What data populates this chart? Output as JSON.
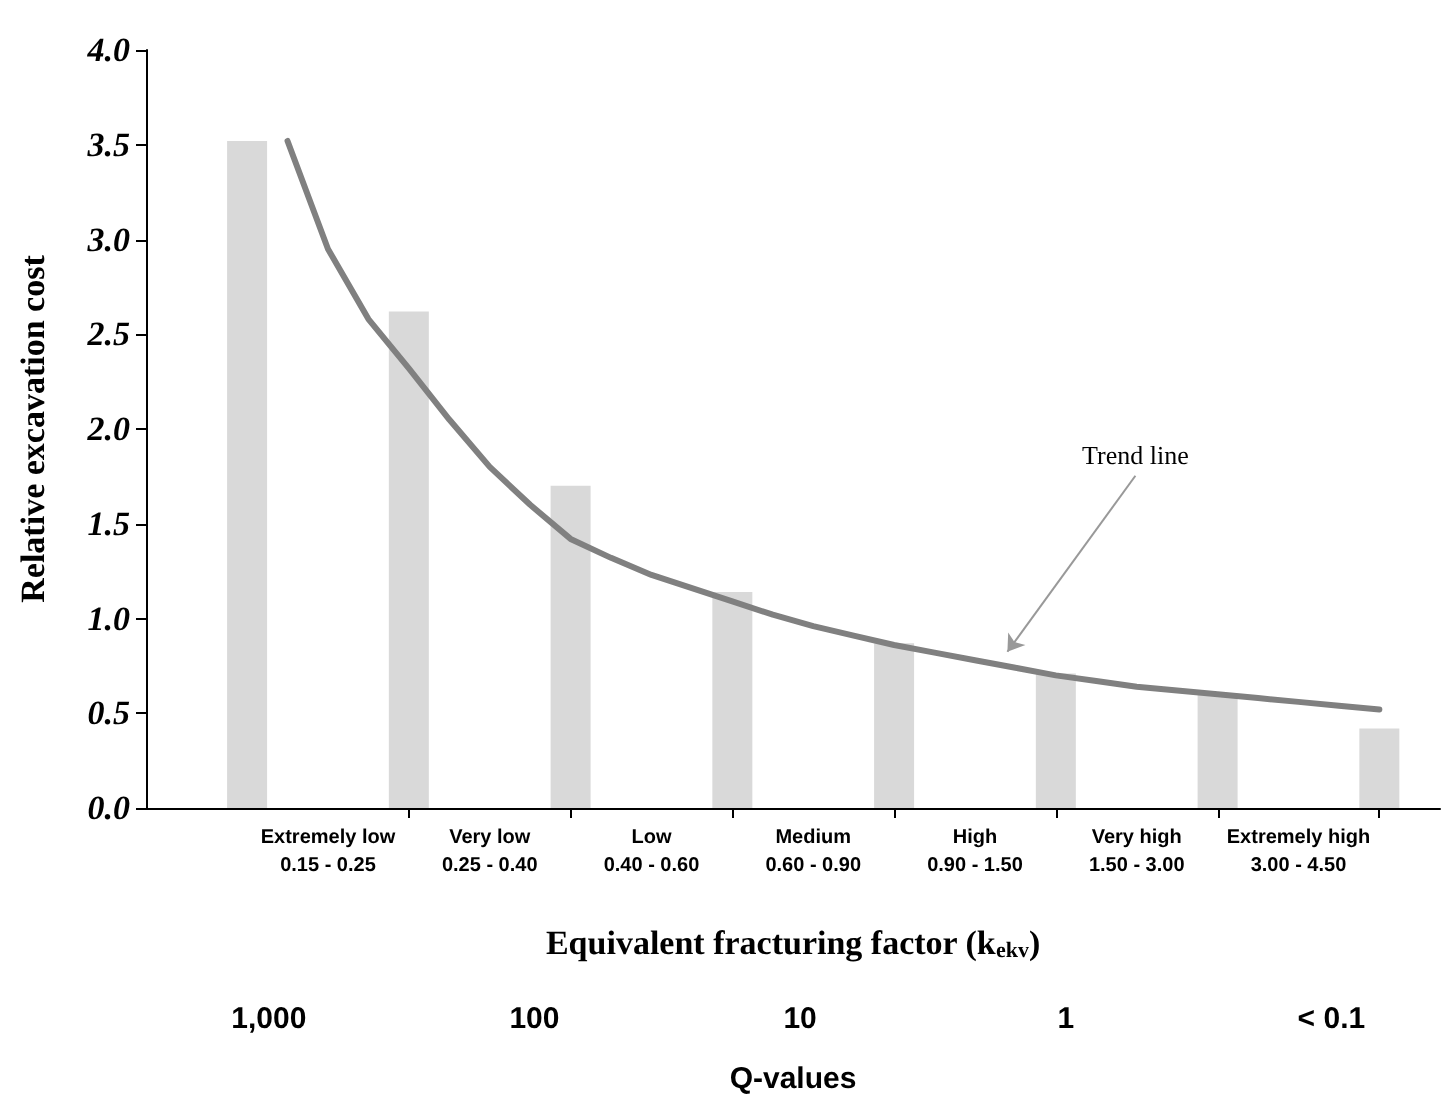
{
  "chart_data": {
    "type": "bar",
    "categories": [
      null,
      null,
      null,
      null,
      "Extremely low\n0.15 - 0.25",
      null,
      null,
      null,
      "Very low\n0.25 - 0.40",
      null,
      null,
      null,
      "Low\n0.40 - 0.60",
      null,
      null,
      null,
      "Medium\n0.60 - 0.90",
      null,
      null,
      null,
      "High\n0.90 - 1.50",
      null,
      null,
      null,
      "Very high\n1.50 - 3.00",
      null,
      null,
      null,
      "Extremely high\n3.00 - 4.50",
      null,
      null,
      null
    ],
    "x2lim": [
      2900,
      0.039
    ],
    "x2ticks": [
      {
        "value": 1000,
        "label": "1,000"
      },
      100,
      10,
      1,
      {
        "value": 0.1,
        "label": "< 0.1"
      }
    ],
    "log": "x2",
    "x2label": "Q-values",
    "xlabel": "Equivalent fracturing factor (k$_{ekv}$)",
    "ylabel": "Relative excavation cost",
    "ylim": [
      0,
      4
    ],
    "yticks": [
      {
        "value": 0,
        "label": "0.0"
      },
      {
        "value": 0.5,
        "label": "0.5"
      },
      {
        "value": 1,
        "label": "1.0"
      },
      {
        "value": 1.5,
        "label": "1.5"
      },
      {
        "value": 2,
        "label": "2.0"
      },
      {
        "value": 2.5,
        "label": "2.5"
      },
      {
        "value": 3,
        "label": "3.0"
      },
      {
        "value": 3.5,
        "label": "3.5"
      },
      {
        "value": 4,
        "label": "4.0"
      }
    ],
    "series": [
      {
        "color": "#d9d9d9",
        "values": [
          null,
          null,
          3.52,
          null,
          null,
          null,
          2.62,
          null,
          null,
          null,
          1.7,
          null,
          null,
          null,
          1.14,
          null,
          null,
          null,
          0.87,
          null,
          null,
          null,
          0.71,
          null,
          null,
          null,
          0.6,
          null,
          null,
          null,
          0.42,
          null
        ]
      },
      {
        "type": "line",
        "color": "#808080",
        "marker": "none",
        "line_style": "solid",
        "values": [
          null,
          null,
          null,
          3.52,
          2.95,
          2.58,
          2.32,
          2.05,
          1.8,
          1.6,
          1.42,
          1.32,
          1.23,
          1.16,
          1.09,
          1.02,
          0.96,
          0.91,
          0.86,
          0.82,
          0.78,
          0.74,
          0.7,
          0.67,
          0.64,
          0.62,
          0.6,
          0.58,
          0.56,
          0.54,
          0.52,
          null
        ]
      }
    ],
    "annotations": [
      "Trend line"
    ],
    "grid": false
  }
}
